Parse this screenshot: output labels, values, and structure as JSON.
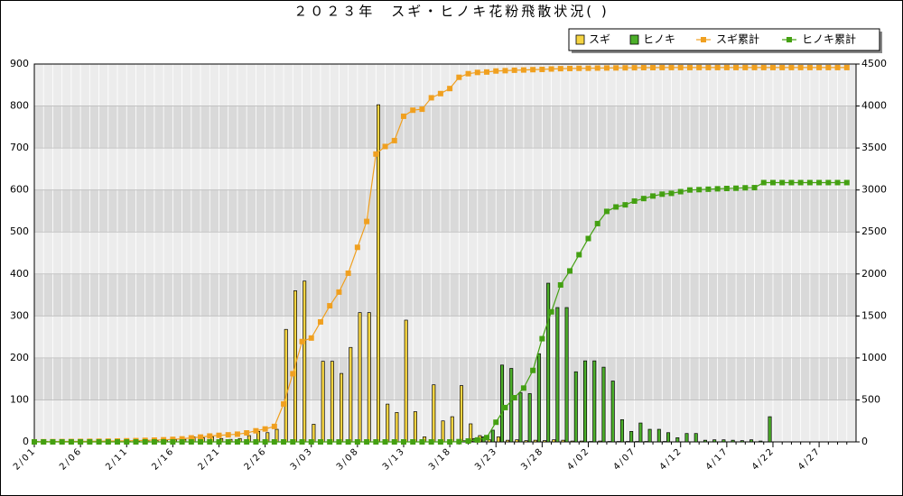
{
  "chart_data": {
    "type": "combo",
    "title": "２０２３年　スギ・ヒノキ花粉飛散状況( )",
    "categories": [
      "2/01",
      null,
      null,
      null,
      null,
      "2/06",
      null,
      null,
      null,
      null,
      "2/11",
      null,
      null,
      null,
      null,
      "2/16",
      null,
      null,
      null,
      null,
      "2/21",
      null,
      null,
      null,
      null,
      "2/26",
      null,
      null,
      null,
      null,
      "3/03",
      null,
      null,
      null,
      null,
      "3/08",
      null,
      null,
      null,
      null,
      "3/13",
      null,
      null,
      null,
      null,
      "3/18",
      null,
      null,
      null,
      null,
      "3/23",
      null,
      null,
      null,
      null,
      "3/28",
      null,
      null,
      null,
      null,
      "4/02",
      null,
      null,
      null,
      null,
      "4/07",
      null,
      null,
      null,
      null,
      "4/12",
      null,
      null,
      null,
      null,
      "4/17",
      null,
      null,
      null,
      null,
      "4/22",
      null,
      null,
      null,
      null,
      "4/27",
      null,
      null,
      null
    ],
    "series": [
      {
        "name": "スギ",
        "style": "bar",
        "color": "#f5d442",
        "axis": "y",
        "values": [
          1,
          1,
          1,
          1,
          1,
          1,
          1,
          1,
          1,
          2,
          2,
          2,
          3,
          3,
          4,
          5,
          6,
          12,
          10,
          12,
          8,
          6,
          8,
          15,
          25,
          22,
          30,
          268,
          360,
          383,
          42,
          192,
          192,
          163,
          225,
          308,
          308,
          803,
          90,
          70,
          290,
          72,
          12,
          136,
          50,
          60,
          134,
          43,
          15,
          5,
          12,
          4,
          5,
          3,
          4,
          3,
          5,
          4,
          2,
          2,
          1,
          2,
          1,
          1,
          1,
          1,
          1,
          0,
          1,
          0,
          0,
          0,
          0,
          0,
          0,
          0,
          0,
          0,
          0,
          0,
          0,
          0,
          0,
          0,
          0,
          0,
          0,
          0,
          0
        ]
      },
      {
        "name": "ヒノキ",
        "style": "bar",
        "color": "#4caf2a",
        "axis": "y",
        "values": [
          0,
          0,
          0,
          0,
          0,
          0,
          0,
          0,
          0,
          0,
          0,
          0,
          0,
          0,
          0,
          0,
          0,
          0,
          0,
          0,
          0,
          0,
          0,
          0,
          0,
          0,
          0,
          0,
          0,
          0,
          0,
          0,
          0,
          0,
          0,
          0,
          0,
          0,
          0,
          0,
          0,
          0,
          0,
          0,
          0,
          0,
          3,
          8,
          12,
          28,
          183,
          175,
          117,
          115,
          210,
          378,
          320,
          320,
          167,
          193,
          193,
          178,
          145,
          53,
          25,
          45,
          30,
          30,
          22,
          10,
          20,
          20,
          4,
          5,
          5,
          4,
          3,
          5,
          2,
          60,
          0,
          0,
          0,
          0,
          0,
          0,
          0,
          0,
          0
        ]
      },
      {
        "name": "スギ累計",
        "style": "line",
        "color": "#f0a020",
        "axis": "y2",
        "values": [
          1,
          2,
          3,
          4,
          5,
          6,
          7,
          8,
          9,
          11,
          13,
          15,
          18,
          21,
          25,
          30,
          36,
          48,
          58,
          70,
          78,
          84,
          92,
          107,
          132,
          154,
          184,
          452,
          812,
          1195,
          1237,
          1429,
          1621,
          1784,
          2009,
          2317,
          2625,
          3428,
          3518,
          3588,
          3878,
          3950,
          3962,
          4098,
          4148,
          4208,
          4342,
          4385,
          4400,
          4405,
          4417,
          4421,
          4426,
          4429,
          4433,
          4436,
          4441,
          4445,
          4447,
          4449,
          4450,
          4452,
          4453,
          4454,
          4455,
          4456,
          4457,
          4457,
          4458,
          4458,
          4458,
          4458,
          4458,
          4458,
          4458,
          4458,
          4458,
          4458,
          4458,
          4458,
          4458,
          4458,
          4458,
          4458,
          4458,
          4458,
          4458,
          4458,
          4458
        ]
      },
      {
        "name": "ヒノキ累計",
        "style": "line",
        "color": "#44a012",
        "axis": "y2",
        "values": [
          0,
          0,
          0,
          0,
          0,
          0,
          0,
          0,
          0,
          0,
          0,
          0,
          0,
          0,
          0,
          0,
          0,
          0,
          0,
          0,
          0,
          0,
          0,
          0,
          0,
          0,
          0,
          0,
          0,
          0,
          0,
          0,
          0,
          0,
          0,
          0,
          0,
          0,
          0,
          0,
          0,
          0,
          0,
          0,
          0,
          0,
          3,
          11,
          23,
          51,
          234,
          409,
          526,
          641,
          851,
          1229,
          1549,
          1869,
          2036,
          2229,
          2422,
          2600,
          2745,
          2798,
          2823,
          2868,
          2898,
          2928,
          2950,
          2960,
          2980,
          3000,
          3004,
          3009,
          3014,
          3018,
          3021,
          3026,
          3028,
          3088,
          3088,
          3088,
          3088,
          3088,
          3088,
          3088,
          3088,
          3088,
          3088
        ]
      }
    ],
    "ylim": [
      0,
      900
    ],
    "yticks": [
      0,
      100,
      200,
      300,
      400,
      500,
      600,
      700,
      800,
      900
    ],
    "y2lim": [
      0,
      4500
    ],
    "y2ticks": [
      0,
      500,
      1000,
      1500,
      2000,
      2500,
      3000,
      3500,
      4000,
      4500
    ],
    "grid": true,
    "legend": "top-right"
  }
}
